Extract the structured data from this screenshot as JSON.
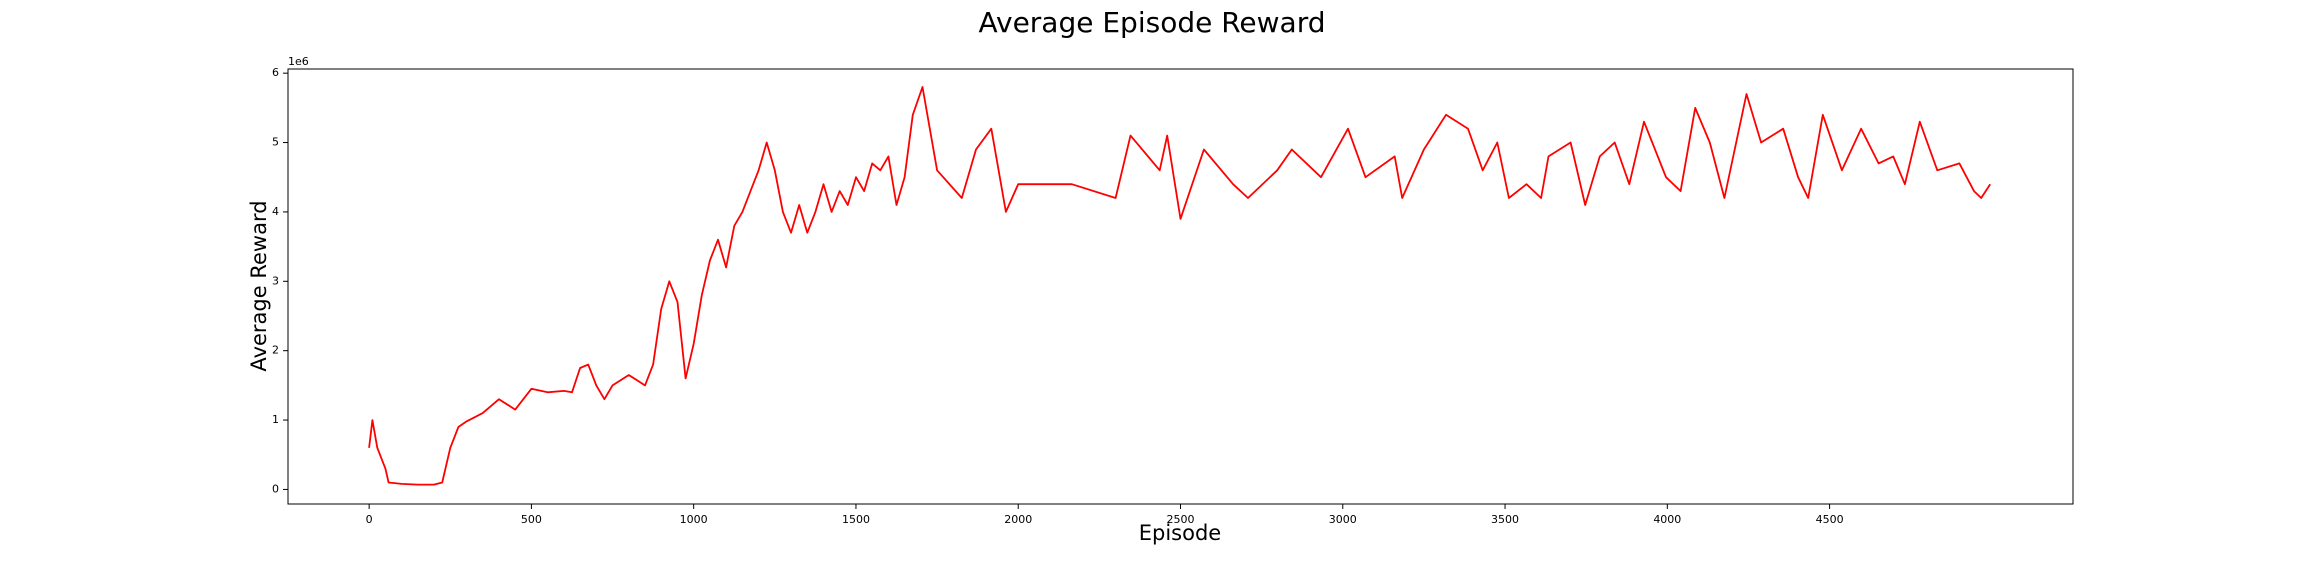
{
  "chart_data": {
    "type": "line",
    "title": "Average Episode Reward",
    "x_label": "Episode",
    "y_label": "Average Reward",
    "y_offset_text": "1e6",
    "x": [
      0,
      10,
      25,
      50,
      60,
      100,
      150,
      200,
      225,
      250,
      275,
      300,
      350,
      400,
      450,
      475,
      500,
      550,
      600,
      625,
      650,
      675,
      700,
      725,
      750,
      800,
      850,
      875,
      900,
      925,
      950,
      975,
      1000,
      1025,
      1050,
      1075,
      1100,
      1125,
      1150,
      1175,
      1200,
      1225,
      1250,
      1275,
      1300,
      1325,
      1350,
      1375,
      1400,
      1425,
      1450,
      1475,
      1500,
      1525,
      1550,
      1575,
      1600,
      1625,
      1650,
      1675,
      1705,
      1750,
      1826,
      1870,
      1917,
      1962,
      2000,
      2165,
      2300,
      2346,
      2436,
      2459,
      2500,
      2572,
      2662,
      2708,
      2798,
      2843,
      2933,
      3016,
      3070,
      3160,
      3183,
      3250,
      3318,
      3386,
      3431,
      3476,
      3512,
      3566,
      3611,
      3634,
      3702,
      3747,
      3792,
      3838,
      3883,
      3928,
      3996,
      4041,
      4086,
      4131,
      4176,
      4244,
      4289,
      4357,
      4403,
      4434,
      4479,
      4538,
      4597,
      4651,
      4696,
      4732,
      4778,
      4832,
      4900,
      4945,
      4967,
      4995
    ],
    "series": [
      {
        "name": "Average Reward",
        "color": "#ff0000",
        "values": [
          0.6,
          1.0,
          0.6,
          0.3,
          0.1,
          0.08,
          0.07,
          0.07,
          0.1,
          0.6,
          0.9,
          0.98,
          1.1,
          1.3,
          1.15,
          1.3,
          1.45,
          1.4,
          1.42,
          1.4,
          1.75,
          1.8,
          1.5,
          1.3,
          1.5,
          1.65,
          1.5,
          1.8,
          2.6,
          3.0,
          2.7,
          1.6,
          2.1,
          2.8,
          3.3,
          3.6,
          3.2,
          3.8,
          4.0,
          4.3,
          4.6,
          5.0,
          4.6,
          4.0,
          3.7,
          4.1,
          3.7,
          4.0,
          4.4,
          4.0,
          4.3,
          4.1,
          4.5,
          4.3,
          4.7,
          4.6,
          4.8,
          4.1,
          4.5,
          5.4,
          5.8,
          4.6,
          4.2,
          4.9,
          5.2,
          4.0,
          4.4,
          4.4,
          4.2,
          5.1,
          4.6,
          5.1,
          3.9,
          4.9,
          4.4,
          4.2,
          4.6,
          4.9,
          4.5,
          5.2,
          4.5,
          4.8,
          4.2,
          4.9,
          5.4,
          5.2,
          4.6,
          5.0,
          4.2,
          4.4,
          4.2,
          4.8,
          5.0,
          4.1,
          4.8,
          5.0,
          4.4,
          5.3,
          4.5,
          4.3,
          5.5,
          5.0,
          4.2,
          5.7,
          5.0,
          5.2,
          4.5,
          4.2,
          5.4,
          4.6,
          5.2,
          4.7,
          4.8,
          4.4,
          5.3,
          4.6,
          4.7,
          4.3,
          4.2,
          4.4
        ]
      }
    ],
    "xlim": [
      -250,
      5250
    ],
    "ylim": [
      -0.21,
      6.06
    ],
    "xticks": [
      0,
      500,
      1000,
      1500,
      2000,
      2500,
      3000,
      3500,
      4000,
      4500
    ],
    "yticks": [
      0,
      1,
      2,
      3,
      4,
      5,
      6
    ]
  }
}
